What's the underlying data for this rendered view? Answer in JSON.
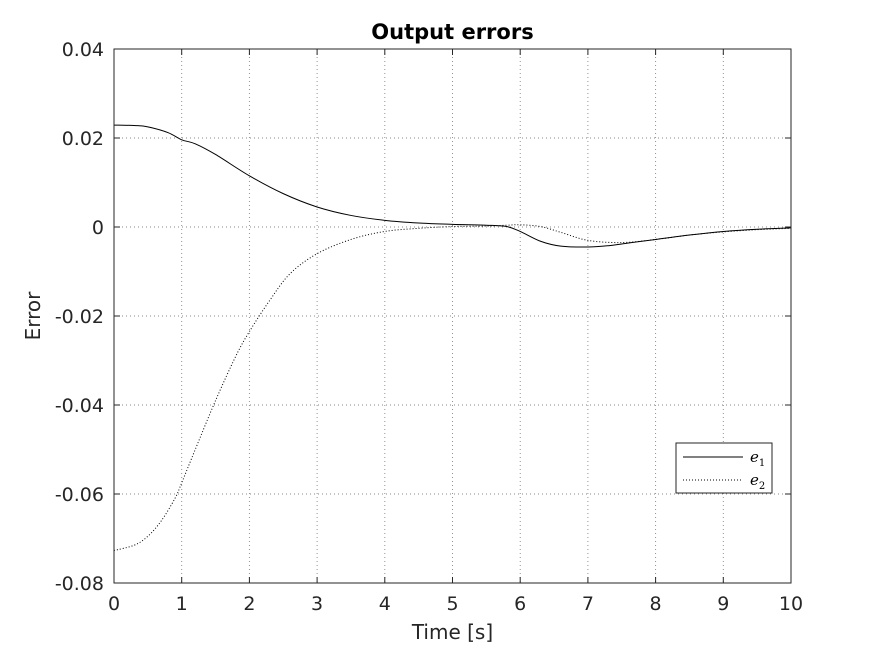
{
  "chart_data": {
    "type": "line",
    "title": "Output errors",
    "xlabel": "Time [s]",
    "ylabel": "Error",
    "xlim": [
      0,
      10
    ],
    "ylim": [
      -0.08,
      0.04
    ],
    "grid": true,
    "legend_position": "bottom-right",
    "x_ticks": [
      0,
      1,
      2,
      3,
      4,
      5,
      6,
      7,
      8,
      9,
      10
    ],
    "x_tick_labels": [
      "0",
      "1",
      "2",
      "3",
      "4",
      "5",
      "6",
      "7",
      "8",
      "9",
      "10"
    ],
    "y_ticks": [
      0.04,
      0.02,
      0,
      -0.02,
      -0.04,
      -0.06,
      -0.08
    ],
    "y_tick_labels": [
      "0.04",
      "0.02",
      "0",
      "-0.02",
      "-0.04",
      "-0.06",
      "-0.08"
    ],
    "series": [
      {
        "name": "e1",
        "legend_base": "e",
        "legend_sub": "1",
        "style": "solid",
        "color": "#000000",
        "x": [
          0,
          0.3,
          0.5,
          0.8,
          1.0,
          1.2,
          1.5,
          2.0,
          2.5,
          3.0,
          3.5,
          4.0,
          4.5,
          5.0,
          5.5,
          5.8,
          6.0,
          6.3,
          6.6,
          7.0,
          7.3,
          7.6,
          8.0,
          8.5,
          9.0,
          9.5,
          10.0
        ],
        "y": [
          0.0229,
          0.0228,
          0.0225,
          0.0212,
          0.0196,
          0.0187,
          0.0163,
          0.0115,
          0.0075,
          0.0045,
          0.0026,
          0.0015,
          0.0009,
          0.0006,
          0.0004,
          0.0001,
          -0.001,
          -0.0032,
          -0.0043,
          -0.0045,
          -0.0042,
          -0.0036,
          -0.0028,
          -0.0018,
          -0.001,
          -0.0005,
          -0.0002
        ]
      },
      {
        "name": "e2",
        "legend_base": "e",
        "legend_sub": "2",
        "style": "dotted",
        "color": "#000000",
        "x": [
          0,
          0.3,
          0.5,
          0.7,
          0.9,
          1.0,
          1.2,
          1.5,
          1.8,
          2.0,
          2.3,
          2.6,
          3.0,
          3.5,
          4.0,
          4.5,
          5.0,
          5.5,
          5.8,
          6.0,
          6.3,
          6.6,
          7.0,
          7.5,
          8.0,
          8.5,
          9.0,
          9.5,
          10.0
        ],
        "y": [
          -0.0727,
          -0.0715,
          -0.0695,
          -0.066,
          -0.061,
          -0.0575,
          -0.05,
          -0.039,
          -0.029,
          -0.0235,
          -0.0165,
          -0.0105,
          -0.006,
          -0.0028,
          -0.001,
          -0.0003,
          0.0001,
          0.0002,
          0.0004,
          0.0005,
          0.0001,
          -0.0012,
          -0.003,
          -0.0035,
          -0.0028,
          -0.0018,
          -0.0011,
          -0.0006,
          -0.0003
        ]
      }
    ]
  }
}
